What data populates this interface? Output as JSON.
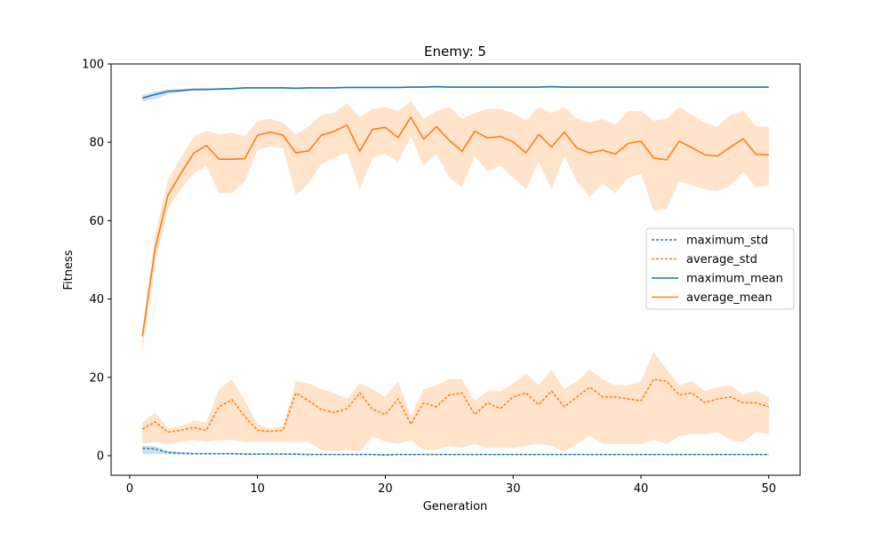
{
  "chart_data": {
    "type": "line",
    "title": "Enemy: 5",
    "xlabel": "Generation",
    "ylabel": "Fitness",
    "xlim": [
      -1.45,
      52.45
    ],
    "ylim": [
      -5,
      100
    ],
    "xticks": [
      0,
      10,
      20,
      30,
      40,
      50
    ],
    "yticks": [
      0,
      20,
      40,
      60,
      80,
      100
    ],
    "grid": false,
    "legend_position": "center-right",
    "x": [
      1,
      2,
      3,
      4,
      5,
      6,
      7,
      8,
      9,
      10,
      11,
      12,
      13,
      14,
      15,
      16,
      17,
      18,
      19,
      20,
      21,
      22,
      23,
      24,
      25,
      26,
      27,
      28,
      29,
      30,
      31,
      32,
      33,
      34,
      35,
      36,
      37,
      38,
      39,
      40,
      41,
      42,
      43,
      44,
      45,
      46,
      47,
      48,
      49,
      50
    ],
    "series": [
      {
        "name": "maximum_std",
        "color": "#1f77b4",
        "linestyle": "dashed",
        "values": [
          1.9,
          1.7,
          0.8,
          0.6,
          0.5,
          0.5,
          0.5,
          0.5,
          0.4,
          0.4,
          0.4,
          0.4,
          0.4,
          0.3,
          0.3,
          0.3,
          0.3,
          0.3,
          0.3,
          0.2,
          0.3,
          0.3,
          0.3,
          0.3,
          0.3,
          0.3,
          0.3,
          0.3,
          0.3,
          0.3,
          0.3,
          0.3,
          0.3,
          0.3,
          0.3,
          0.3,
          0.3,
          0.3,
          0.3,
          0.3,
          0.3,
          0.3,
          0.3,
          0.3,
          0.3,
          0.3,
          0.3,
          0.3,
          0.3,
          0.3
        ],
        "band_lower": [
          0.4,
          0.4,
          0.4,
          0.3,
          0.3,
          0.3,
          0.3,
          0.3,
          0.2,
          0.2,
          0.2,
          0.2,
          0.2,
          0.1,
          0.1,
          0.1,
          0.1,
          0.1,
          0.1,
          0.0,
          0.1,
          0.1,
          0.1,
          0.1,
          0.1,
          0.1,
          0.1,
          0.1,
          0.1,
          0.1,
          0.1,
          0.1,
          0.1,
          0.1,
          0.1,
          0.1,
          0.1,
          0.1,
          0.1,
          0.1,
          0.1,
          0.1,
          0.1,
          0.1,
          0.1,
          0.1,
          0.1,
          0.1,
          0.1,
          0.1
        ],
        "band_upper": [
          2.6,
          2.4,
          1.2,
          0.9,
          0.8,
          0.8,
          0.8,
          0.8,
          0.6,
          0.6,
          0.6,
          0.6,
          0.6,
          0.5,
          0.5,
          0.5,
          0.5,
          0.5,
          0.5,
          0.4,
          0.5,
          0.5,
          0.5,
          0.5,
          0.5,
          0.5,
          0.5,
          0.5,
          0.5,
          0.5,
          0.5,
          0.5,
          0.5,
          0.5,
          0.5,
          0.5,
          0.5,
          0.5,
          0.5,
          0.5,
          0.5,
          0.5,
          0.5,
          0.5,
          0.5,
          0.5,
          0.5,
          0.5,
          0.5,
          0.5
        ]
      },
      {
        "name": "average_std",
        "color": "#ff7f0e",
        "linestyle": "dashed",
        "values": [
          6.8,
          8.6,
          6.0,
          6.5,
          7.2,
          6.5,
          12.5,
          14.3,
          10.0,
          6.5,
          6.2,
          6.5,
          16.0,
          14.0,
          11.8,
          11.0,
          12.0,
          16.0,
          11.8,
          10.5,
          14.5,
          8.0,
          13.5,
          12.5,
          15.5,
          16.0,
          10.5,
          13.5,
          12.0,
          15.0,
          16.0,
          13.0,
          16.5,
          12.5,
          15.0,
          17.5,
          15.0,
          15.0,
          14.5,
          14.0,
          19.5,
          19.0,
          15.5,
          16.0,
          13.5,
          14.5,
          15.0,
          13.5,
          13.5,
          12.5
        ],
        "band_lower": [
          3.0,
          3.5,
          3.0,
          3.5,
          4.0,
          3.5,
          4.0,
          4.0,
          3.5,
          3.5,
          3.5,
          3.5,
          3.5,
          3.5,
          1.5,
          1.0,
          1.5,
          1.0,
          5.0,
          3.5,
          3.0,
          4.0,
          1.5,
          1.5,
          2.5,
          2.0,
          3.0,
          2.0,
          2.0,
          2.0,
          2.5,
          3.0,
          2.5,
          1.0,
          3.0,
          5.0,
          3.0,
          3.0,
          3.0,
          3.0,
          4.0,
          3.0,
          5.0,
          5.5,
          5.5,
          6.0,
          4.0,
          3.5,
          6.0,
          5.5
        ],
        "band_upper": [
          8.5,
          11.0,
          7.0,
          7.5,
          9.0,
          8.5,
          17.0,
          19.5,
          14.0,
          8.0,
          7.0,
          7.5,
          19.0,
          18.5,
          17.0,
          16.0,
          14.5,
          18.5,
          17.0,
          15.0,
          19.0,
          10.0,
          17.0,
          18.0,
          19.5,
          19.5,
          14.0,
          16.5,
          16.5,
          18.5,
          21.0,
          18.0,
          22.0,
          17.0,
          19.0,
          22.0,
          19.5,
          18.0,
          18.0,
          19.0,
          26.5,
          22.0,
          18.0,
          19.0,
          16.5,
          17.5,
          18.0,
          15.5,
          16.5,
          15.0
        ]
      },
      {
        "name": "maximum_mean",
        "color": "#1f77b4",
        "linestyle": "solid",
        "values": [
          91.3,
          92.2,
          93.0,
          93.2,
          93.5,
          93.5,
          93.6,
          93.7,
          93.9,
          93.9,
          93.9,
          93.9,
          93.8,
          93.9,
          93.9,
          93.9,
          94.0,
          94.0,
          94.0,
          94.0,
          94.0,
          94.1,
          94.1,
          94.2,
          94.1,
          94.1,
          94.1,
          94.1,
          94.1,
          94.1,
          94.1,
          94.1,
          94.2,
          94.1,
          94.1,
          94.1,
          94.1,
          94.1,
          94.1,
          94.1,
          94.1,
          94.1,
          94.1,
          94.1,
          94.1,
          94.1,
          94.1,
          94.1,
          94.1,
          94.1
        ],
        "band_lower": [
          90.5,
          91.0,
          92.3,
          92.8,
          93.2,
          93.3,
          93.4,
          93.5,
          93.7,
          93.7,
          93.7,
          93.7,
          93.6,
          93.7,
          93.7,
          93.7,
          93.8,
          93.8,
          93.8,
          93.8,
          93.8,
          93.9,
          93.9,
          94.0,
          93.9,
          93.9,
          93.9,
          93.9,
          93.9,
          93.9,
          93.9,
          93.9,
          94.0,
          93.9,
          93.9,
          93.9,
          93.9,
          93.9,
          93.9,
          93.9,
          93.9,
          93.9,
          93.9,
          93.9,
          93.9,
          93.9,
          93.9,
          93.9,
          93.9,
          93.9
        ],
        "band_upper": [
          92.0,
          93.0,
          93.5,
          93.6,
          93.8,
          93.8,
          93.8,
          93.9,
          94.1,
          94.1,
          94.1,
          94.1,
          94.0,
          94.1,
          94.1,
          94.1,
          94.2,
          94.2,
          94.2,
          94.2,
          94.2,
          94.3,
          94.3,
          94.4,
          94.3,
          94.3,
          94.3,
          94.3,
          94.3,
          94.3,
          94.3,
          94.3,
          94.4,
          94.3,
          94.3,
          94.3,
          94.3,
          94.3,
          94.3,
          94.3,
          94.3,
          94.3,
          94.3,
          94.3,
          94.3,
          94.3,
          94.3,
          94.3,
          94.3,
          94.3
        ]
      },
      {
        "name": "average_mean",
        "color": "#ff7f0e",
        "linestyle": "solid",
        "values": [
          30.5,
          53.0,
          66.5,
          72.0,
          77.2,
          79.2,
          75.7,
          75.7,
          75.8,
          81.8,
          82.6,
          81.8,
          77.3,
          77.8,
          81.8,
          82.8,
          84.4,
          77.7,
          83.3,
          83.8,
          81.2,
          86.4,
          80.8,
          84.0,
          80.5,
          77.7,
          82.8,
          81.1,
          81.5,
          80.1,
          77.3,
          82.0,
          78.8,
          82.6,
          78.5,
          77.3,
          78.0,
          77.0,
          79.7,
          80.3,
          76.0,
          75.5,
          80.3,
          78.6,
          76.8,
          76.5,
          78.8,
          80.9,
          76.9,
          76.8
        ],
        "band_lower": [
          27.0,
          49.5,
          63.0,
          68.0,
          72.0,
          74.0,
          67.0,
          67.0,
          70.0,
          78.0,
          79.0,
          78.5,
          66.5,
          69.5,
          74.5,
          76.0,
          77.5,
          68.0,
          76.0,
          77.0,
          75.0,
          81.5,
          74.0,
          77.0,
          71.0,
          68.5,
          76.5,
          72.5,
          74.0,
          71.0,
          68.0,
          75.0,
          68.0,
          76.5,
          70.0,
          66.0,
          69.5,
          67.0,
          71.0,
          72.0,
          62.5,
          63.0,
          70.0,
          69.0,
          68.0,
          67.5,
          69.0,
          72.5,
          68.5,
          69.0
        ],
        "band_upper": [
          32.5,
          56.5,
          70.5,
          76.0,
          81.5,
          83.0,
          82.0,
          82.5,
          81.5,
          85.5,
          86.0,
          85.0,
          82.0,
          84.0,
          87.0,
          87.5,
          90.0,
          86.5,
          88.5,
          89.0,
          88.0,
          90.5,
          86.0,
          88.0,
          89.0,
          86.0,
          87.5,
          88.5,
          88.5,
          87.5,
          85.5,
          89.0,
          87.5,
          89.0,
          86.0,
          85.0,
          86.0,
          84.5,
          88.0,
          88.0,
          85.5,
          86.0,
          89.0,
          87.0,
          85.0,
          84.0,
          87.0,
          88.0,
          84.0,
          84.0
        ]
      }
    ],
    "legend": [
      "maximum_std",
      "average_std",
      "maximum_mean",
      "average_mean"
    ]
  }
}
